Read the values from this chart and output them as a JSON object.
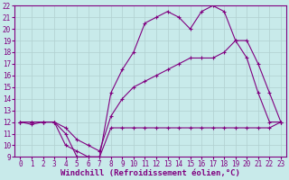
{
  "xlabel": "Windchill (Refroidissement éolien,°C)",
  "bg_color": "#c8eaea",
  "line_color": "#800080",
  "grid_color": "#b0d0d0",
  "xlim": [
    -0.5,
    23.5
  ],
  "ylim": [
    9,
    22
  ],
  "xticks": [
    0,
    1,
    2,
    3,
    4,
    5,
    6,
    7,
    8,
    9,
    10,
    11,
    12,
    13,
    14,
    15,
    16,
    17,
    18,
    19,
    20,
    21,
    22,
    23
  ],
  "yticks": [
    9,
    10,
    11,
    12,
    13,
    14,
    15,
    16,
    17,
    18,
    19,
    20,
    21,
    22
  ],
  "line1_x": [
    0,
    1,
    2,
    3,
    4,
    5,
    6,
    7,
    8,
    9,
    10,
    11,
    12,
    13,
    14,
    15,
    16,
    17,
    18,
    19,
    20,
    21,
    22,
    23
  ],
  "line1_y": [
    12,
    12,
    12,
    12,
    11,
    9,
    9,
    9,
    11.5,
    11.5,
    11.5,
    11.5,
    11.5,
    11.5,
    11.5,
    11.5,
    11.5,
    11.5,
    11.5,
    11.5,
    11.5,
    11.5,
    11.5,
    12
  ],
  "line2_x": [
    0,
    1,
    2,
    3,
    4,
    5,
    6,
    7,
    8,
    9,
    10,
    11,
    12,
    13,
    14,
    15,
    16,
    17,
    18,
    19,
    20,
    21,
    22,
    23
  ],
  "line2_y": [
    12,
    11.8,
    12,
    12,
    10,
    9.5,
    9,
    9,
    14.5,
    16.5,
    18,
    20.5,
    21,
    21.5,
    21,
    20,
    21.5,
    22,
    21.5,
    19,
    17.5,
    14.5,
    12,
    12
  ],
  "line3_x": [
    0,
    1,
    2,
    3,
    4,
    5,
    6,
    7,
    8,
    9,
    10,
    11,
    12,
    13,
    14,
    15,
    16,
    17,
    18,
    19,
    20,
    21,
    22,
    23
  ],
  "line3_y": [
    12,
    12,
    12,
    12,
    11.5,
    10.5,
    10,
    9.5,
    12.5,
    14,
    15,
    15.5,
    16,
    16.5,
    17,
    17.5,
    17.5,
    17.5,
    18,
    19,
    19,
    17,
    14.5,
    12
  ],
  "tick_fontsize": 5.5,
  "xlabel_fontsize": 6.5
}
